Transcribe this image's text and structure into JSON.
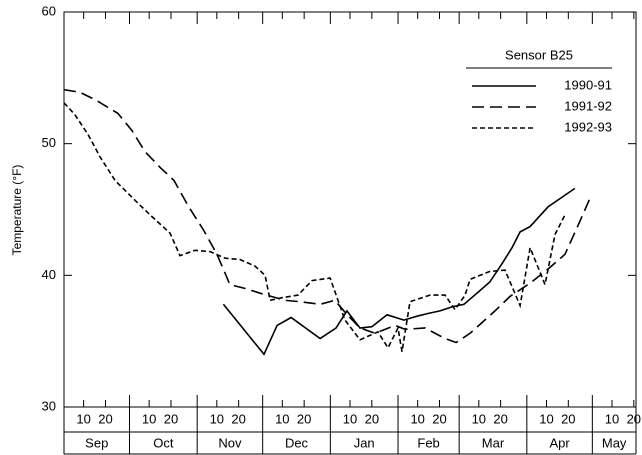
{
  "chart_data": {
    "type": "line",
    "y_label": "Temperature (°F)",
    "legend_title": "Sensor B25",
    "legend": "upper right",
    "xlim": [
      0,
      262
    ],
    "ylim": [
      30,
      60
    ],
    "yticks": [
      30,
      40,
      50,
      60
    ],
    "x_months": [
      {
        "value": 0,
        "label": "Sep"
      },
      {
        "value": 30,
        "label": "Oct"
      },
      {
        "value": 61,
        "label": "Nov"
      },
      {
        "value": 91,
        "label": "Dec"
      },
      {
        "value": 122,
        "label": "Jan"
      },
      {
        "value": 153,
        "label": "Feb"
      },
      {
        "value": 181,
        "label": "Mar"
      },
      {
        "value": 212,
        "label": "Apr"
      },
      {
        "value": 242,
        "label": "May"
      }
    ],
    "xticks": [
      {
        "value": 9,
        "label": "10"
      },
      {
        "value": 19,
        "label": "20"
      },
      {
        "value": 39,
        "label": "10"
      },
      {
        "value": 49,
        "label": "20"
      },
      {
        "value": 70,
        "label": "10"
      },
      {
        "value": 80,
        "label": "20"
      },
      {
        "value": 100,
        "label": "10"
      },
      {
        "value": 110,
        "label": "20"
      },
      {
        "value": 131,
        "label": "10"
      },
      {
        "value": 141,
        "label": "20"
      },
      {
        "value": 162,
        "label": "10"
      },
      {
        "value": 172,
        "label": "20"
      },
      {
        "value": 190,
        "label": "10"
      },
      {
        "value": 200,
        "label": "20"
      },
      {
        "value": 221,
        "label": "10"
      },
      {
        "value": 231,
        "label": "20"
      },
      {
        "value": 251,
        "label": "10"
      },
      {
        "value": 261,
        "label": "20"
      }
    ],
    "series": [
      {
        "name": "1990-91",
        "color": "#000000",
        "dash": "solid",
        "x": [
          73,
          91.6,
          97.6,
          104,
          117.3,
          124.6,
          129.6,
          135.6,
          141,
          148,
          155.7,
          161.7,
          166.7,
          172.2,
          177.7,
          183.2,
          189.6,
          195.1,
          201.1,
          205.2,
          208.9,
          213.5,
          221.7,
          234
        ],
        "values": [
          37.8,
          34.0,
          36.2,
          36.8,
          35.2,
          36.0,
          37.3,
          36.0,
          36.1,
          37.0,
          36.6,
          36.9,
          37.1,
          37.3,
          37.6,
          37.8,
          38.7,
          39.5,
          41.0,
          42.1,
          43.3,
          43.7,
          45.2,
          46.6
        ]
      },
      {
        "name": "1991-92",
        "color": "#000000",
        "dash": "dashed",
        "x": [
          0,
          7.3,
          14.7,
          24.7,
          31.1,
          37.1,
          44,
          50.4,
          56.8,
          64.1,
          70.1,
          76,
          83,
          90.7,
          101.2,
          108.1,
          117.3,
          124.1,
          129.2,
          135.6,
          142.5,
          151.6,
          156.2,
          165.4,
          174.5,
          179.6,
          186,
          197.4,
          204.3,
          213.5,
          222.6,
          229.5,
          235.5,
          241
        ],
        "values": [
          54.1,
          53.9,
          53.3,
          52.3,
          51.0,
          49.4,
          48.2,
          47.2,
          45.3,
          43.4,
          41.6,
          39.3,
          39.0,
          38.6,
          38.1,
          38.0,
          37.8,
          38.1,
          37.1,
          36.0,
          35.6,
          36.2,
          35.9,
          36.0,
          35.2,
          34.9,
          35.6,
          37.3,
          38.4,
          39.4,
          40.6,
          41.6,
          43.8,
          45.9
        ]
      },
      {
        "name": "1992-93",
        "color": "#000000",
        "dash": "dotted",
        "x": [
          0,
          5,
          11,
          16.5,
          23.4,
          32.5,
          39.4,
          48.6,
          53.1,
          60,
          66.9,
          73.8,
          80.6,
          87.5,
          92.1,
          94.4,
          99.9,
          107.2,
          113.6,
          121.9,
          128.7,
          135.6,
          143.8,
          148.4,
          153,
          154.8,
          158.5,
          167.7,
          174.5,
          179.1,
          183.7,
          186,
          195.1,
          202,
          208.9,
          213.5,
          220.3,
          224.9,
          229.5
        ],
        "values": [
          53.1,
          52.2,
          50.7,
          49.0,
          47.2,
          45.7,
          44.6,
          43.2,
          41.5,
          41.9,
          41.8,
          41.3,
          41.2,
          40.7,
          40.0,
          38.1,
          38.3,
          38.5,
          39.6,
          39.8,
          36.6,
          35.1,
          35.7,
          34.5,
          36.0,
          34.2,
          38.0,
          38.5,
          38.5,
          37.4,
          38.5,
          39.7,
          40.3,
          40.4,
          37.7,
          42.1,
          39.3,
          43.1,
          44.6
        ]
      }
    ]
  }
}
